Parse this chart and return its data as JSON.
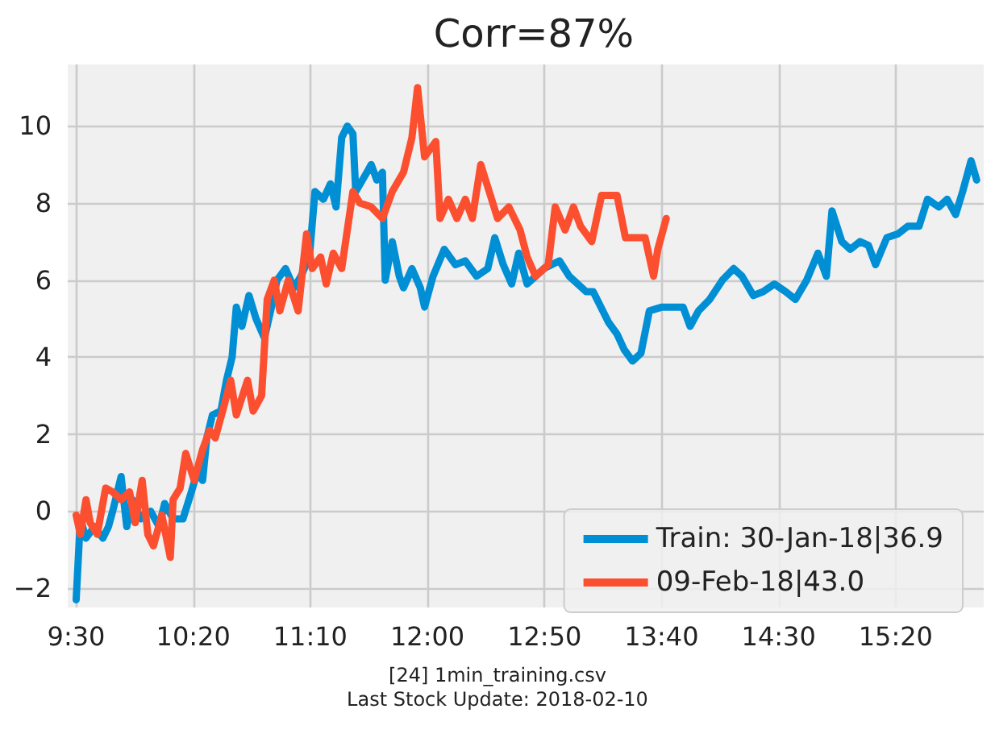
{
  "chart_data": {
    "type": "line",
    "title": "Corr=87%",
    "annotations": [
      "[24] 1min_training.csv",
      "Last Stock Update: 2018-02-10"
    ],
    "xlim": [
      9.44,
      15.96
    ],
    "ylim": [
      -2.5,
      11.6
    ],
    "xticks": [
      {
        "value": 9.5,
        "label": "9:30"
      },
      {
        "value": 10.3333,
        "label": "10:20"
      },
      {
        "value": 11.1667,
        "label": "11:10"
      },
      {
        "value": 12,
        "label": "12:00"
      },
      {
        "value": 12.8333,
        "label": "12:50"
      },
      {
        "value": 13.6667,
        "label": "13:40"
      },
      {
        "value": 14.5,
        "label": "14:30"
      },
      {
        "value": 15.3333,
        "label": "15:20"
      }
    ],
    "yticks": [
      -2,
      0,
      2,
      4,
      6,
      8,
      10
    ],
    "grid": true,
    "legend": "bottom right",
    "marker": "none",
    "line_style": "solid",
    "series": [
      {
        "name": "Train: 30-Jan-18|36.9",
        "color": "#008fd5",
        "x": [
          9.5,
          9.53,
          9.57,
          9.63,
          9.69,
          9.73,
          9.76,
          9.82,
          9.86,
          9.9,
          9.96,
          10.03,
          10.09,
          10.13,
          10.19,
          10.26,
          10.32,
          10.36,
          10.4,
          10.43,
          10.47,
          10.53,
          10.57,
          10.61,
          10.64,
          10.68,
          10.73,
          10.78,
          10.84,
          10.89,
          10.93,
          10.99,
          11.05,
          11.1,
          11.16,
          11.2,
          11.26,
          11.31,
          11.35,
          11.39,
          11.43,
          11.47,
          11.49,
          11.57,
          11.6,
          11.64,
          11.68,
          11.7,
          11.75,
          11.8,
          11.83,
          11.89,
          11.95,
          11.98,
          12.04,
          12.12,
          12.2,
          12.27,
          12.35,
          12.43,
          12.48,
          12.54,
          12.6,
          12.65,
          12.71,
          12.83,
          12.94,
          13.01,
          13.13,
          13.18,
          13.29,
          13.35,
          13.4,
          13.46,
          13.52,
          13.58,
          13.67,
          13.75,
          13.82,
          13.87,
          13.93,
          14.01,
          14.1,
          14.18,
          14.24,
          14.32,
          14.39,
          14.47,
          14.55,
          14.62,
          14.7,
          14.78,
          14.84,
          14.88,
          14.95,
          15.01,
          15.08,
          15.14,
          15.19,
          15.27,
          15.35,
          15.42,
          15.5,
          15.56,
          15.64,
          15.7,
          15.76,
          15.81,
          15.87,
          15.91
        ],
        "values": [
          -2.3,
          -0.2,
          -0.7,
          -0.4,
          -0.7,
          -0.4,
          0.0,
          0.9,
          -0.4,
          0.3,
          -0.2,
          0.0,
          -0.4,
          0.2,
          -0.2,
          -0.2,
          0.5,
          1.0,
          0.8,
          1.9,
          2.5,
          2.6,
          3.4,
          4.0,
          5.3,
          4.8,
          5.6,
          5.0,
          4.5,
          5.3,
          6.0,
          6.3,
          5.8,
          6.1,
          6.6,
          8.3,
          8.1,
          8.5,
          7.9,
          9.7,
          10.0,
          9.8,
          8.3,
          8.8,
          9.0,
          8.6,
          8.8,
          6.0,
          7.0,
          6.1,
          5.8,
          6.3,
          5.8,
          5.3,
          6.1,
          6.8,
          6.4,
          6.5,
          6.1,
          6.3,
          7.1,
          6.4,
          5.9,
          6.7,
          5.9,
          6.3,
          6.5,
          6.1,
          5.7,
          5.7,
          4.9,
          4.6,
          4.2,
          3.9,
          4.1,
          5.2,
          5.3,
          5.3,
          5.3,
          4.8,
          5.2,
          5.5,
          6.0,
          6.3,
          6.1,
          5.6,
          5.7,
          5.9,
          5.7,
          5.5,
          6.0,
          6.7,
          6.1,
          7.8,
          7.0,
          6.8,
          7.0,
          6.9,
          6.4,
          7.1,
          7.2,
          7.4,
          7.4,
          8.1,
          7.9,
          8.1,
          7.7,
          8.3,
          9.1,
          8.6
        ]
      },
      {
        "name": "09-Feb-18|43.0",
        "color": "#fc4f30",
        "x": [
          9.5,
          9.53,
          9.57,
          9.6,
          9.65,
          9.71,
          9.76,
          9.82,
          9.88,
          9.92,
          9.97,
          10.01,
          10.05,
          10.11,
          10.17,
          10.19,
          10.24,
          10.28,
          10.34,
          10.4,
          10.45,
          10.49,
          10.55,
          10.6,
          10.64,
          10.72,
          10.76,
          10.82,
          10.86,
          10.91,
          10.95,
          11.01,
          11.08,
          11.14,
          11.18,
          11.24,
          11.28,
          11.33,
          11.39,
          11.47,
          11.52,
          11.6,
          11.68,
          11.75,
          11.83,
          11.89,
          11.93,
          11.98,
          12.06,
          12.09,
          12.15,
          12.21,
          12.27,
          12.32,
          12.38,
          12.44,
          12.5,
          12.58,
          12.66,
          12.71,
          12.77,
          12.86,
          12.91,
          12.98,
          13.04,
          13.09,
          13.17,
          13.24,
          13.35,
          13.41,
          13.49,
          13.55,
          13.61,
          13.64,
          13.7
        ],
        "values": [
          -0.1,
          -0.6,
          0.3,
          -0.3,
          -0.6,
          0.6,
          0.5,
          0.3,
          0.5,
          -0.3,
          0.8,
          -0.6,
          -0.9,
          -0.1,
          -1.2,
          0.3,
          0.6,
          1.5,
          0.8,
          1.6,
          2.1,
          1.9,
          2.7,
          3.4,
          2.5,
          3.4,
          2.6,
          3.0,
          5.5,
          6.0,
          5.2,
          6.0,
          5.2,
          7.2,
          6.3,
          6.6,
          5.9,
          6.7,
          6.3,
          8.3,
          8.0,
          7.9,
          7.6,
          8.3,
          8.8,
          9.7,
          11.0,
          9.2,
          9.6,
          7.6,
          8.1,
          7.6,
          8.1,
          7.6,
          9.0,
          8.3,
          7.6,
          7.9,
          7.3,
          6.6,
          6.1,
          6.4,
          7.9,
          7.3,
          7.9,
          7.4,
          7.0,
          8.2,
          8.2,
          7.1,
          7.1,
          7.1,
          6.1,
          6.8,
          7.6
        ]
      }
    ]
  }
}
